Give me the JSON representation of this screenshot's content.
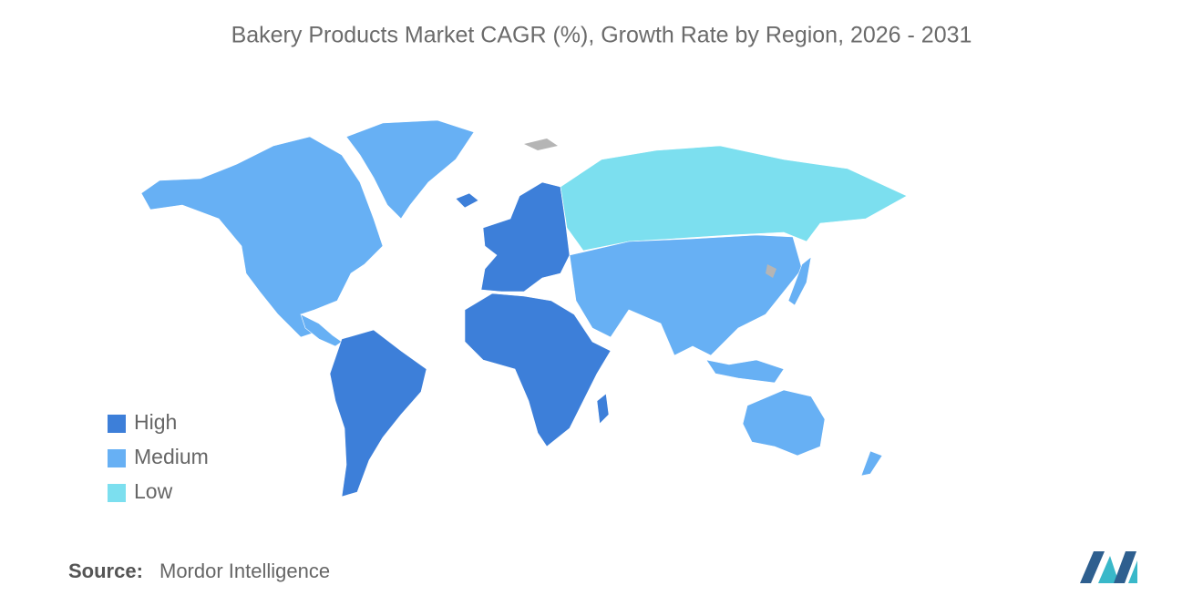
{
  "title": "Bakery Products Market CAGR (%), Growth Rate by Region, 2026 - 2031",
  "legend": [
    {
      "label": "High",
      "color": "#3d7fd9"
    },
    {
      "label": "Medium",
      "color": "#67b0f4"
    },
    {
      "label": "Low",
      "color": "#7cdfef"
    }
  ],
  "source": {
    "label": "Source:",
    "text": "Mordor Intelligence"
  }
}
